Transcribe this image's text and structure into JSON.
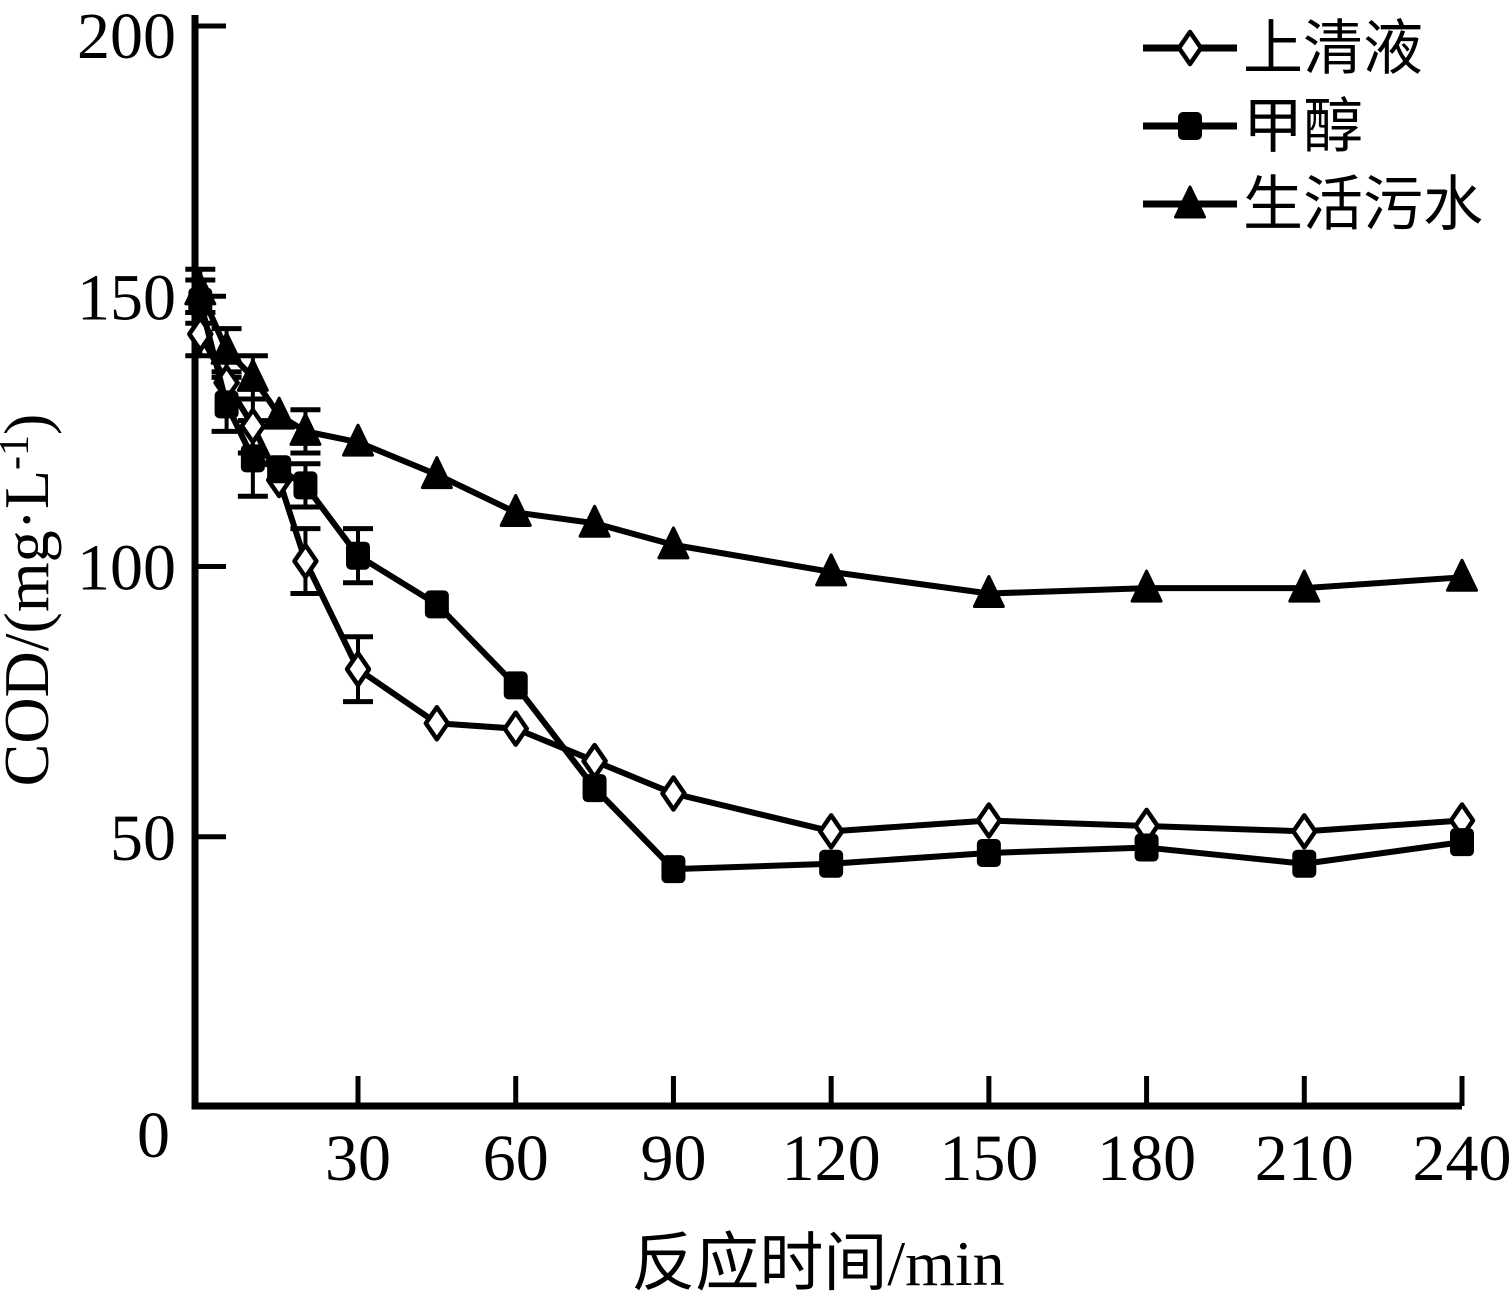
{
  "figure": {
    "background_color": "#ffffff",
    "ink_color": "#000000",
    "marker_fill_open": "#ffffff"
  },
  "chart_data": {
    "type": "line",
    "title": "",
    "xlabel": "反应时间/min",
    "ylabel": "COD/(mg·L⁻¹)",
    "xlim": [
      0,
      240
    ],
    "ylim": [
      0,
      200
    ],
    "x_ticks": [
      30,
      60,
      90,
      120,
      150,
      180,
      210,
      240
    ],
    "y_ticks": [
      0,
      50,
      100,
      150,
      200
    ],
    "grid": false,
    "legend_position": "top-right",
    "x": [
      0,
      5,
      10,
      15,
      20,
      30,
      45,
      60,
      75,
      90,
      120,
      150,
      180,
      210,
      240
    ],
    "series": [
      {
        "name": "上清液",
        "marker": "open-diamond",
        "values": [
          143,
          134,
          126,
          116,
          101,
          81,
          71,
          70,
          64,
          58,
          51,
          53,
          52,
          51,
          53
        ],
        "errors": [
          4,
          0,
          5,
          0,
          6,
          6,
          0,
          0,
          0,
          0,
          0,
          0,
          0,
          0,
          0
        ]
      },
      {
        "name": "甲醇",
        "marker": "filled-square",
        "values": [
          149,
          130,
          120,
          118,
          115,
          102,
          93,
          78,
          59,
          44,
          45,
          47,
          48,
          45,
          49
        ],
        "errors": [
          4,
          5,
          7,
          0,
          4,
          5,
          0,
          0,
          0,
          0,
          0,
          0,
          0,
          0,
          0
        ]
      },
      {
        "name": "生活污水",
        "marker": "filled-triangle",
        "values": [
          151,
          140,
          135,
          128,
          125,
          123,
          117,
          110,
          108,
          104,
          99,
          95,
          96,
          96,
          98
        ],
        "errors": [
          4,
          4,
          4,
          0,
          4,
          0,
          0,
          0,
          0,
          0,
          0,
          0,
          0,
          0,
          0
        ]
      }
    ]
  }
}
